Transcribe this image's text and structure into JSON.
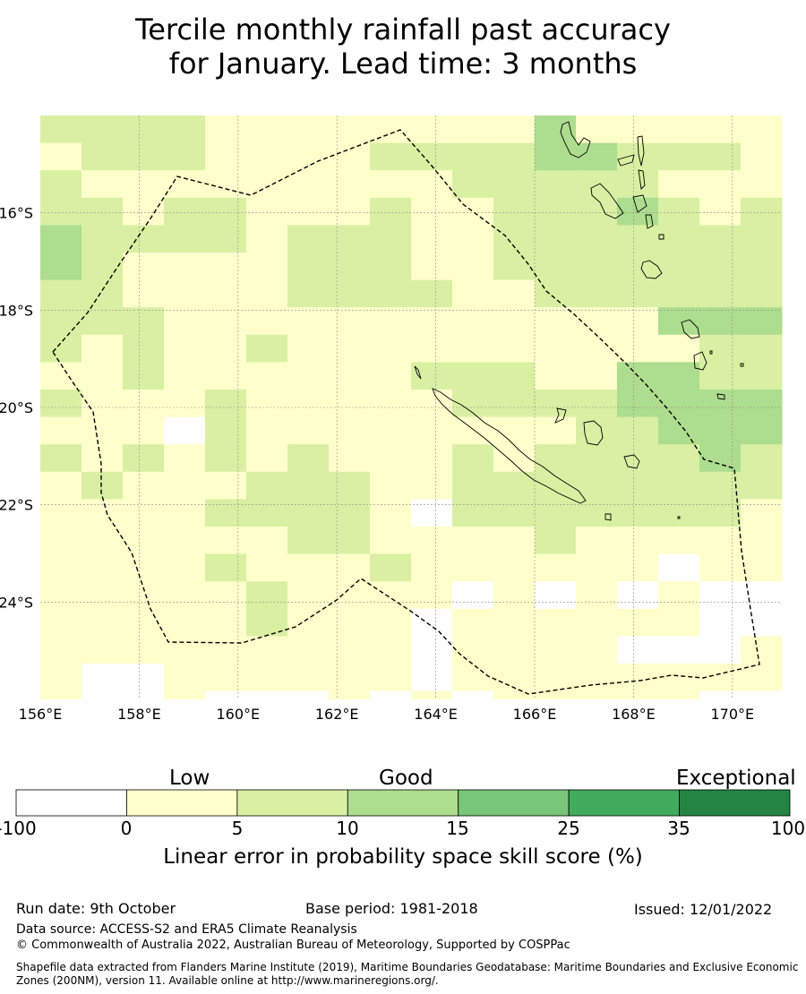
{
  "title": {
    "line1": "Tercile monthly rainfall past accuracy",
    "line2": "for January. Lead time: 3 months"
  },
  "map": {
    "lon_range": [
      156.0,
      171.0
    ],
    "lat_range": [
      -26.0,
      -14.0
    ],
    "x_ticks": [
      "156°E",
      "158°E",
      "160°E",
      "162°E",
      "164°E",
      "166°E",
      "168°E",
      "170°E"
    ],
    "y_ticks": [
      "16°S",
      "18°S",
      "20°S",
      "22°S",
      "24°S"
    ],
    "grid": true,
    "boundary": "dashed",
    "region": "New Caledonia EEZ"
  },
  "colorbar": {
    "categories": [
      "Low",
      "Good",
      "Exceptional"
    ],
    "ticks": [
      "-100",
      "0",
      "5",
      "10",
      "15",
      "25",
      "35",
      "100"
    ],
    "colors": [
      "#ffffff",
      "#ffffcc",
      "#d9f0a3",
      "#addd8e",
      "#78c679",
      "#41ab5d",
      "#238443"
    ],
    "label": "Linear error in probability space skill score (%)"
  },
  "footer": {
    "run_date": "Run date: 9th October",
    "base_period": "Base period: 1981-2018",
    "issued": "Issued: 12/01/2022",
    "data_source": "Data source: ACCESS-S2 and ERA5 Climate Reanalysis",
    "copyright": "© Commonwealth of Australia 2022, Australian Bureau of Meteorology, Supported by COSPPac",
    "shapefile": "Shapefile data extracted from Flanders Marine Institute (2019), Maritime Boundaries Geodatabase: Maritime Boundaries and Exclusive Economic Zones (200NM), version 11. Available online at http://www.marineregions.org/."
  }
}
